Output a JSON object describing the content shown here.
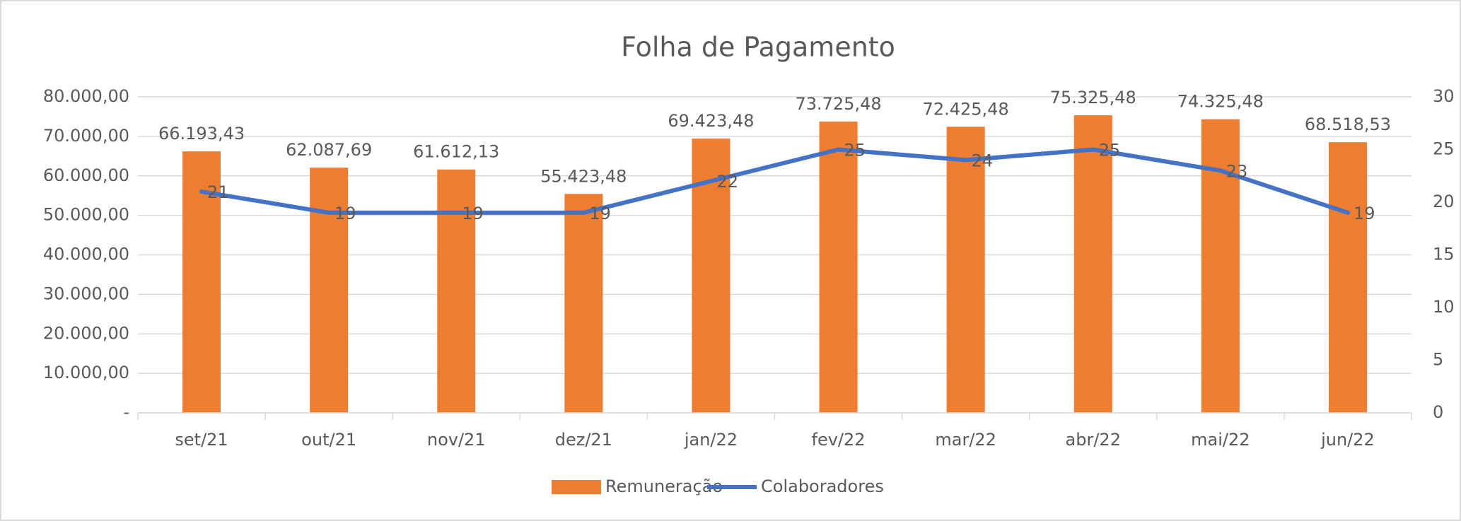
{
  "chart_data": {
    "type": "bar",
    "title": "Folha de Pagamento",
    "categories": [
      "set/21",
      "out/21",
      "nov/21",
      "dez/21",
      "jan/22",
      "fev/22",
      "mar/22",
      "abr/22",
      "mai/22",
      "jun/22"
    ],
    "series": [
      {
        "name": "Remuneração",
        "type": "bar",
        "color": "#ed7d31",
        "values": [
          66193.43,
          62087.69,
          61612.13,
          55423.48,
          69423.48,
          73725.48,
          72425.48,
          75325.48,
          74325.48,
          68518.53
        ],
        "value_labels": [
          "66.193,43",
          "62.087,69",
          "61.612,13",
          "55.423,48",
          "69.423,48",
          "73.725,48",
          "72.425,48",
          "75.325,48",
          "74.325,48",
          "68.518,53"
        ]
      },
      {
        "name": "Colaboradores",
        "type": "line",
        "axis": "y2",
        "color": "#4472c4",
        "values": [
          21,
          19,
          19,
          19,
          22,
          25,
          24,
          25,
          23,
          19
        ]
      }
    ],
    "ylim": [
      0,
      80000
    ],
    "yticks": [
      {
        "value": 0,
        "label": "-"
      },
      {
        "value": 10000,
        "label": "10.000,00"
      },
      {
        "value": 20000,
        "label": "20.000,00"
      },
      {
        "value": 30000,
        "label": "30.000,00"
      },
      {
        "value": 40000,
        "label": "40.000,00"
      },
      {
        "value": 50000,
        "label": "50.000,00"
      },
      {
        "value": 60000,
        "label": "60.000,00"
      },
      {
        "value": 70000,
        "label": "70.000,00"
      },
      {
        "value": 80000,
        "label": "80.000,00"
      }
    ],
    "y2lim": [
      0,
      30
    ],
    "y2ticks": [
      0,
      5,
      10,
      15,
      20,
      25,
      30
    ],
    "grid": true,
    "legend": "bottom"
  }
}
